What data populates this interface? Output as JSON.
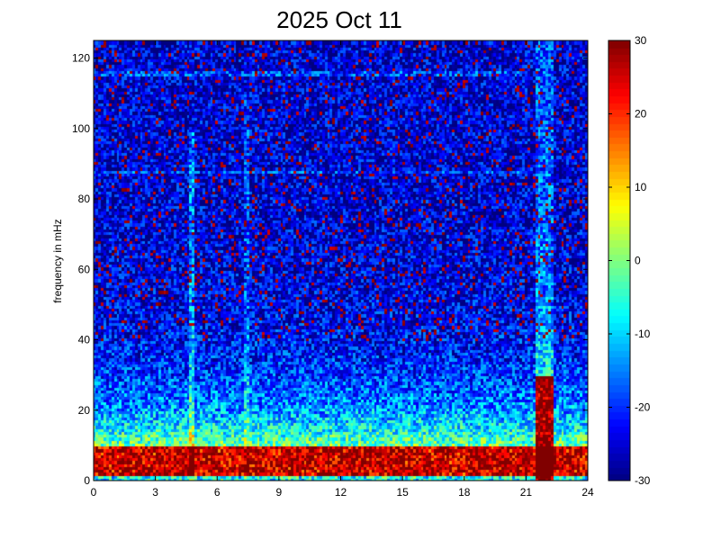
{
  "chart_data": {
    "type": "heatmap",
    "title": "2025 Oct 11",
    "xlabel": "",
    "ylabel": "frequency in mHz",
    "xlim": [
      0,
      24
    ],
    "ylim": [
      0,
      125
    ],
    "x_ticks": [
      0,
      3,
      6,
      9,
      12,
      15,
      18,
      21,
      24
    ],
    "y_ticks": [
      0,
      20,
      40,
      60,
      80,
      100,
      120
    ],
    "colormap": "jet",
    "clim": [
      -30,
      30
    ],
    "colorbar_ticks": [
      -30,
      -20,
      -10,
      0,
      10,
      20,
      30
    ],
    "colorbar_labels": [
      "-30",
      "-20",
      "-10",
      "0",
      "10",
      "20",
      "30"
    ],
    "grid": false,
    "legend": "none",
    "features": {
      "low_frequency_band_mhz": [
        2,
        10
      ],
      "low_frequency_level": 28,
      "background_high_frequency_level": -25,
      "bright_event_hours": [
        21.5,
        22.3
      ],
      "bright_event_level_low_freq": 30,
      "horizontal_line_mhz": [
        116,
        88
      ]
    }
  }
}
